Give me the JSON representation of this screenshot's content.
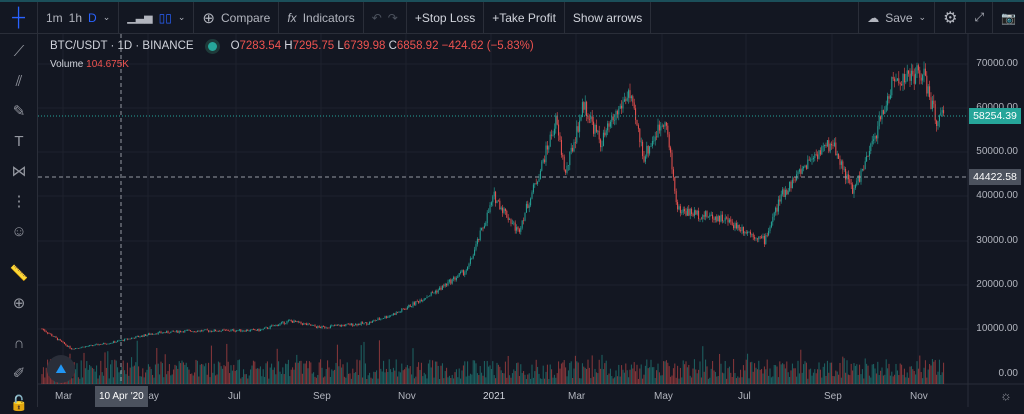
{
  "toolbar": {
    "intervals": [
      "1m",
      "1h",
      "D"
    ],
    "active_interval": "D",
    "compare": "Compare",
    "indicators": "Indicators",
    "stop_loss": "+Stop Loss",
    "take_profit": "+Take Profit",
    "show_arrows": "Show arrows",
    "save": "Save"
  },
  "left_tools": [
    "crosshair-icon",
    "trend-line-icon",
    "pitchfork-icon",
    "brush-icon",
    "text-icon",
    "pattern-icon",
    "prediction-icon",
    "emoji-icon",
    "ruler-icon",
    "zoom-in-icon",
    "magnet-icon",
    "lock-drawing-icon",
    "unlock-icon"
  ],
  "legend": {
    "symbol": "BTC/USDT · 1D · BINANCE",
    "o_label": "O",
    "open": "7283.54",
    "h_label": "H",
    "high": "7295.75",
    "l_label": "L",
    "low": "6739.98",
    "c_label": "C",
    "close": "6858.92",
    "change": "−424.62 (−5.83%)",
    "volume_label": "Volume",
    "volume": "104.675K"
  },
  "price_axis": [
    "70000.00",
    "60000.00",
    "50000.00",
    "40000.00",
    "30000.00",
    "20000.00",
    "10000.00",
    "0.00"
  ],
  "last_price": "58254.39",
  "crosshair_price": "44422.58",
  "crosshair_date": "10 Apr '20",
  "time_axis": [
    "Mar",
    "May",
    "Jul",
    "Sep",
    "Nov",
    "2021",
    "Mar",
    "May",
    "Jul",
    "Sep",
    "Nov"
  ],
  "colors": {
    "up": "#26a69a",
    "down": "#ef5350",
    "bg": "#131722"
  },
  "chart_data": {
    "type": "candlestick",
    "symbol": "BTC/USDT",
    "interval": "1D",
    "ylim": [
      0,
      75000
    ],
    "close_path": [
      [
        "2020-02-20",
        10000
      ],
      [
        "2020-03-12",
        5500
      ],
      [
        "2020-04-10",
        6900
      ],
      [
        "2020-05-10",
        9000
      ],
      [
        "2020-06-01",
        9500
      ],
      [
        "2020-07-25",
        9700
      ],
      [
        "2020-08-15",
        11800
      ],
      [
        "2020-09-05",
        10300
      ],
      [
        "2020-10-10",
        11300
      ],
      [
        "2020-11-01",
        13800
      ],
      [
        "2020-11-30",
        19000
      ],
      [
        "2020-12-20",
        23500
      ],
      [
        "2021-01-08",
        40000
      ],
      [
        "2021-01-25",
        32000
      ],
      [
        "2021-02-10",
        46000
      ],
      [
        "2021-02-21",
        57000
      ],
      [
        "2021-02-28",
        45000
      ],
      [
        "2021-03-13",
        61000
      ],
      [
        "2021-03-25",
        52000
      ],
      [
        "2021-04-14",
        63500
      ],
      [
        "2021-04-25",
        49000
      ],
      [
        "2021-05-10",
        58000
      ],
      [
        "2021-05-19",
        37000
      ],
      [
        "2021-06-01",
        36000
      ],
      [
        "2021-06-20",
        35000
      ],
      [
        "2021-07-20",
        30000
      ],
      [
        "2021-08-01",
        40000
      ],
      [
        "2021-08-23",
        49000
      ],
      [
        "2021-09-07",
        52000
      ],
      [
        "2021-09-21",
        41000
      ],
      [
        "2021-10-01",
        48000
      ],
      [
        "2021-10-20",
        66000
      ],
      [
        "2021-11-10",
        68000
      ],
      [
        "2021-11-20",
        57000
      ],
      [
        "2021-11-25",
        58254.39
      ]
    ]
  }
}
